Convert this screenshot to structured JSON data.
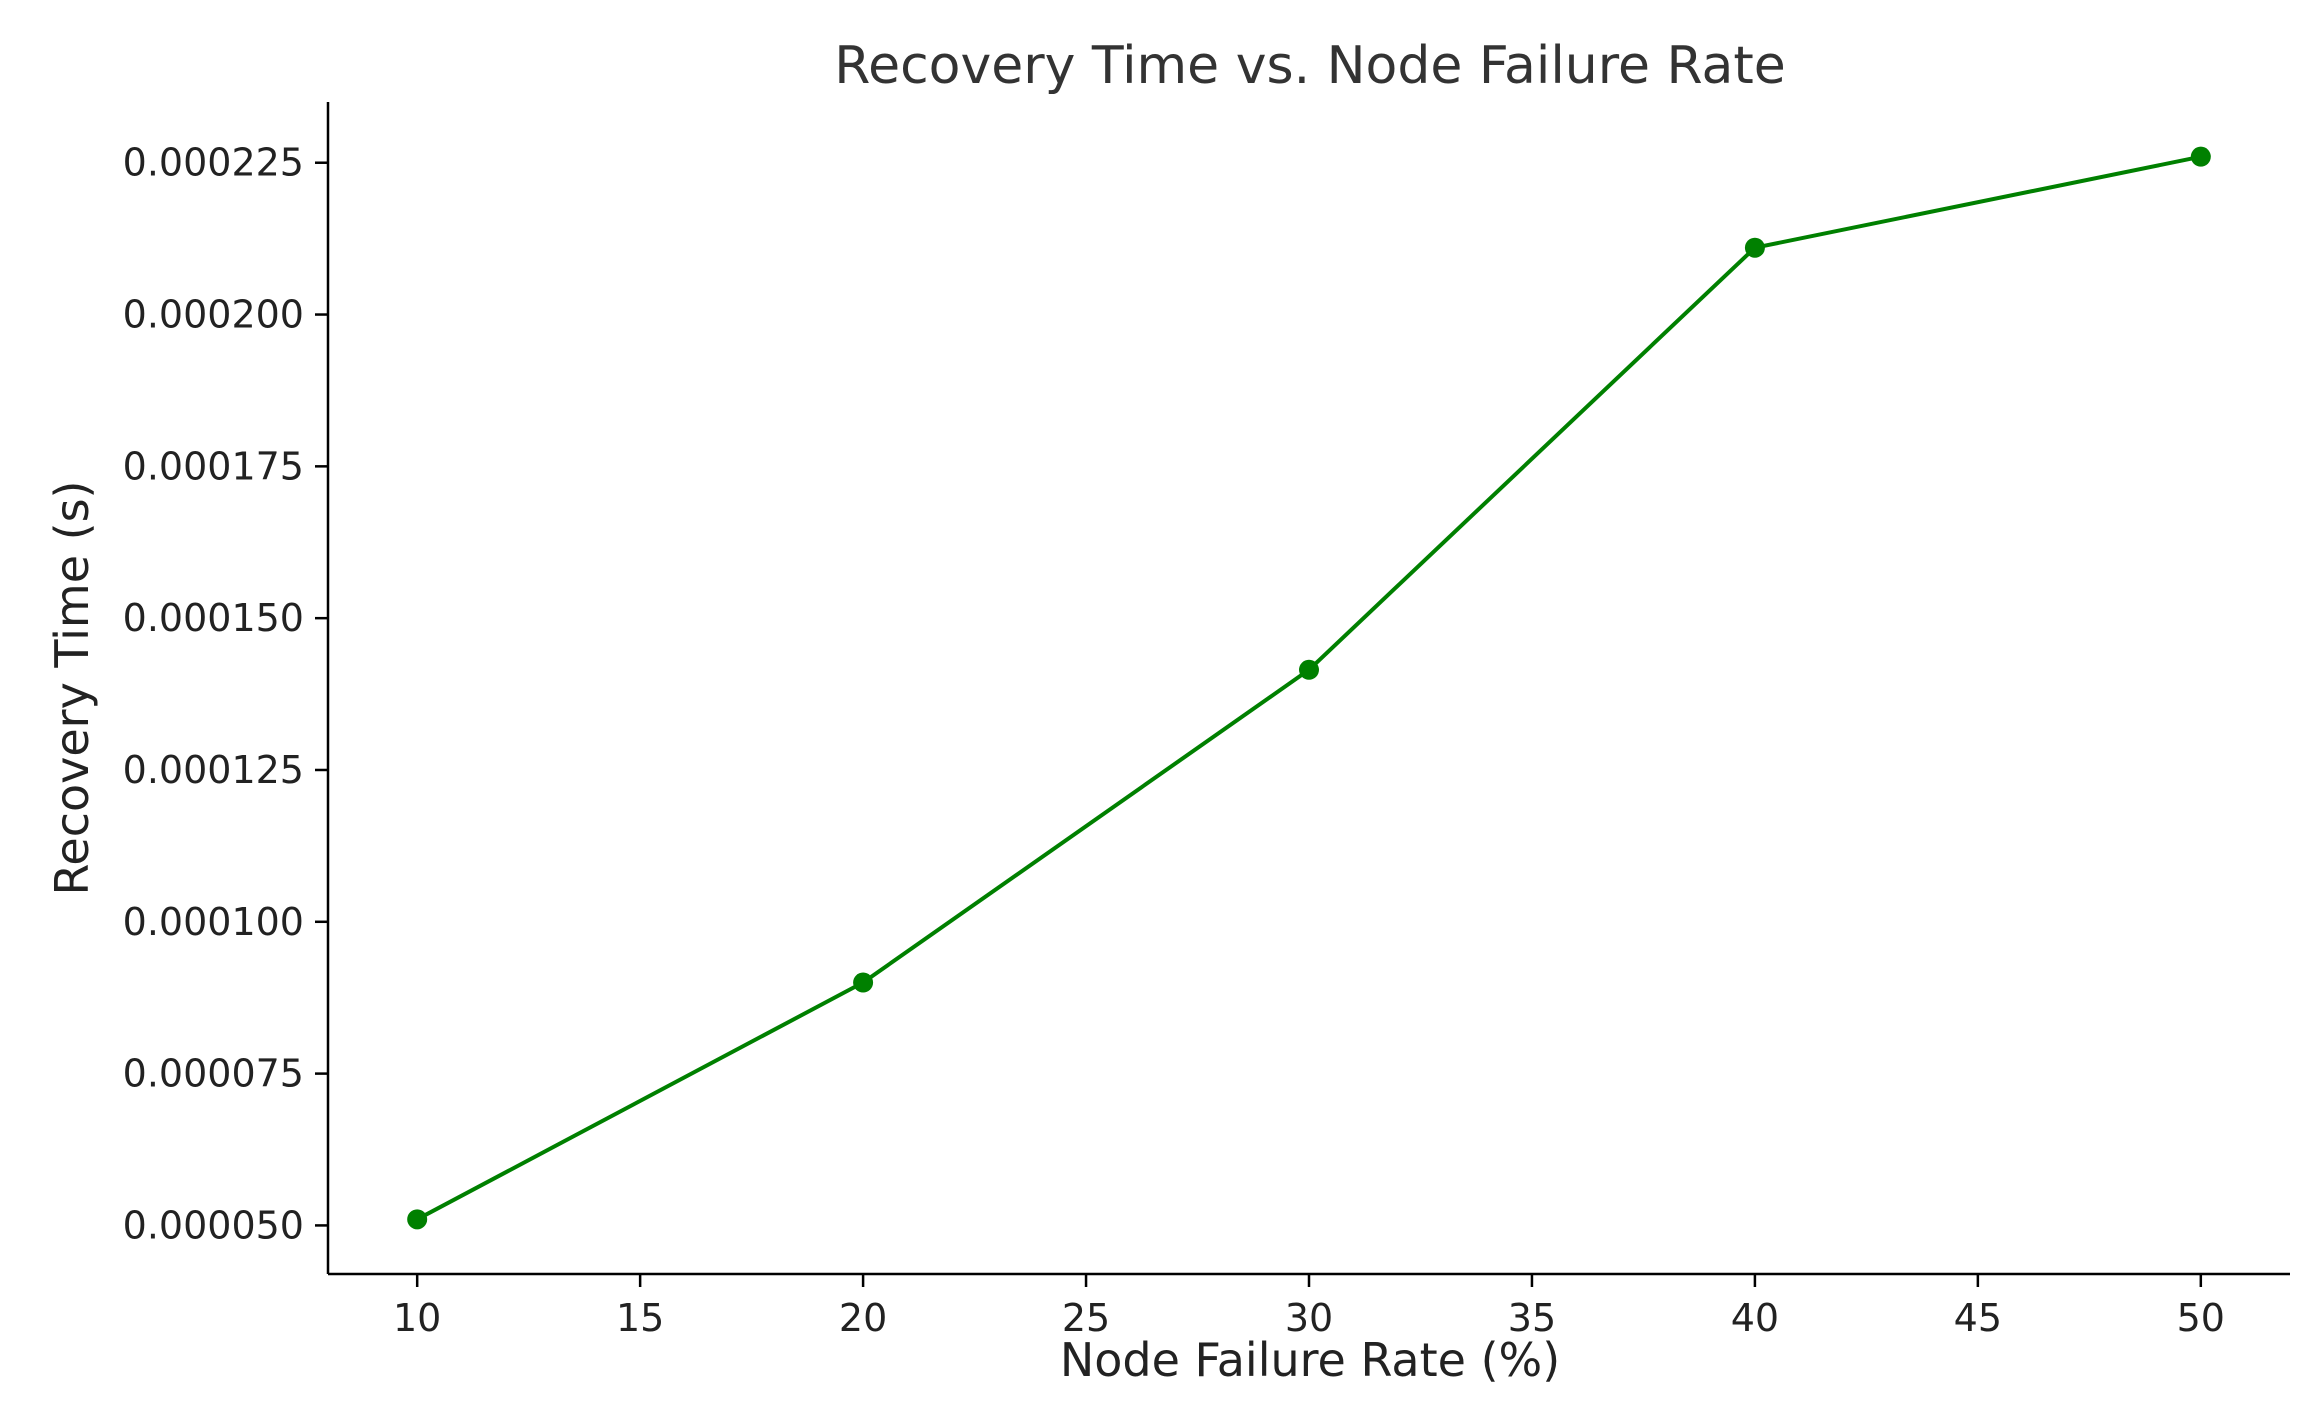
{
  "chart_data": {
    "type": "line",
    "title": "Recovery Time vs. Node Failure Rate",
    "xlabel": "Node Failure Rate (%)",
    "ylabel": "Recovery Time (s)",
    "x": [
      10,
      20,
      30,
      40,
      50
    ],
    "series": [
      {
        "values": [
          5.1e-05,
          9e-05,
          0.0001415,
          0.000211,
          0.000226
        ],
        "color": "#008000",
        "marker": "circle"
      }
    ],
    "xlim": [
      8,
      52
    ],
    "ylim": [
      4.2e-05,
      0.000235
    ],
    "xticks": [
      10,
      15,
      20,
      25,
      30,
      35,
      40,
      45,
      50
    ],
    "xtick_labels": [
      "10",
      "15",
      "20",
      "25",
      "30",
      "35",
      "40",
      "45",
      "50"
    ],
    "yticks": [
      5e-05,
      7.5e-05,
      0.0001,
      0.000125,
      0.00015,
      0.000175,
      0.0002,
      0.000225
    ],
    "ytick_labels": [
      "0.000050",
      "0.000075",
      "0.000100",
      "0.000125",
      "0.000150",
      "0.000175",
      "0.000200",
      "0.000225"
    ],
    "grid": false,
    "spines": "left-bottom"
  }
}
